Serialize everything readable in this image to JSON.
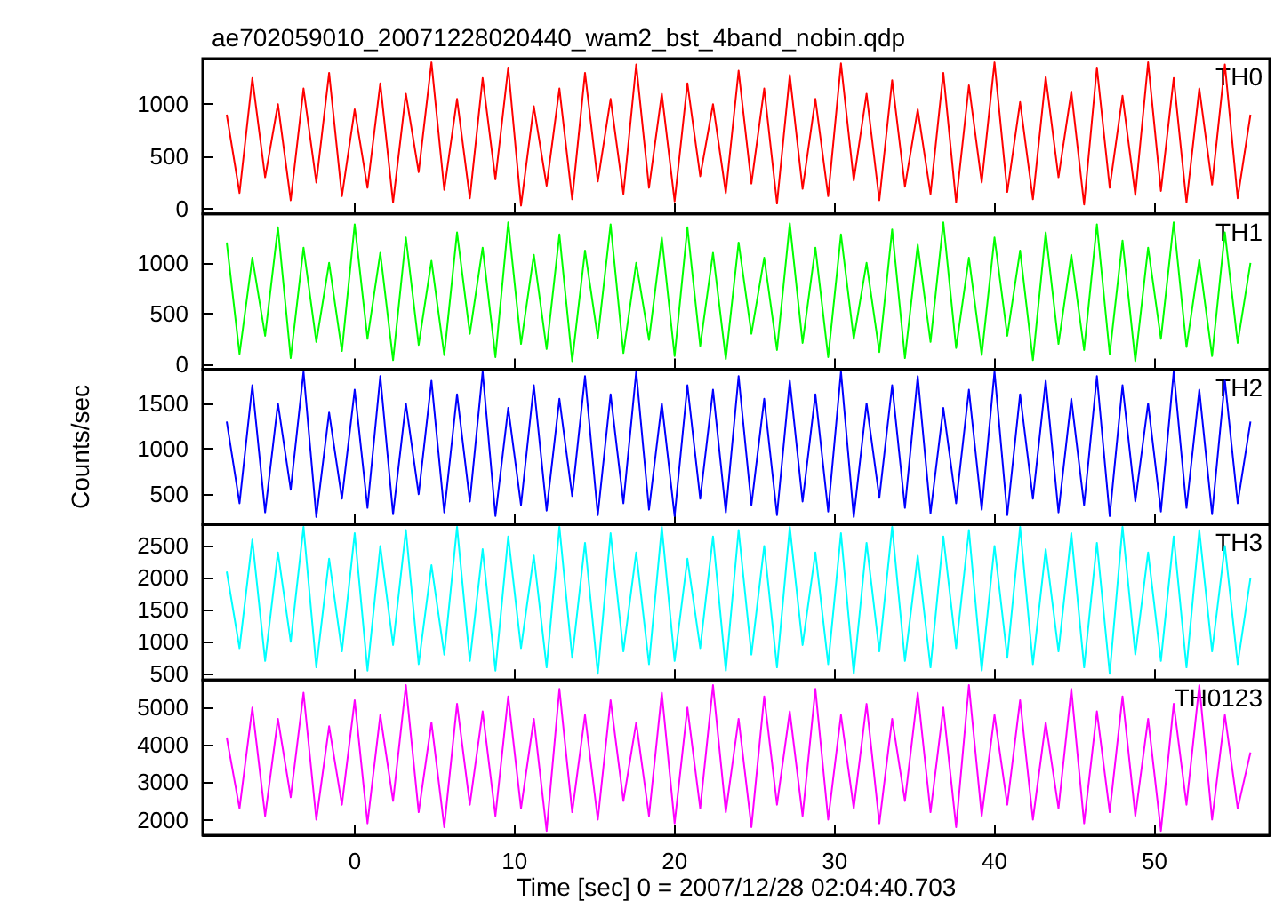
{
  "chart_data": [
    {
      "type": "line",
      "title": "ae702059010_20071228020440_wam2_bst_4band_nobin.qdp",
      "marker": "none",
      "tick_labels": "y",
      "xlim": [
        -9.5,
        57.2
      ],
      "xticks": [
        0,
        10,
        20,
        30,
        40,
        50
      ],
      "ylim": [
        -50,
        1435
      ],
      "yticks": [
        0,
        500,
        1000
      ],
      "x": [
        -8,
        -7.2,
        -6.4,
        -5.6,
        -4.8,
        -4,
        -3.2,
        -2.4,
        -1.6,
        -0.8,
        0,
        0.8,
        1.6,
        2.4,
        3.2,
        4,
        4.8,
        5.6,
        6.4,
        7.2,
        8,
        8.8,
        9.6,
        10.4,
        11.2,
        12,
        12.8,
        13.6,
        14.4,
        15.2,
        16,
        16.8,
        17.6,
        18.4,
        19.2,
        20,
        20.8,
        21.6,
        22.4,
        23.2,
        24,
        24.8,
        25.6,
        26.4,
        27.2,
        28,
        28.8,
        29.6,
        30.4,
        31.2,
        32,
        32.8,
        33.6,
        34.4,
        35.2,
        36,
        36.8,
        37.6,
        38.4,
        39.2,
        40,
        40.8,
        41.6,
        42.4,
        43.2,
        44,
        44.8,
        45.6,
        46.4,
        47.2,
        48,
        48.8,
        49.6,
        50.4,
        51.2,
        52,
        52.8,
        53.6,
        54.4,
        55.2,
        56
      ],
      "series": [
        {
          "name": "TH0",
          "color": "#ff0000",
          "values": [
            900,
            150,
            1250,
            300,
            1000,
            80,
            1150,
            250,
            1300,
            120,
            950,
            200,
            1200,
            60,
            1100,
            350,
            1400,
            180,
            1050,
            100,
            1250,
            280,
            1350,
            30,
            980,
            220,
            1150,
            90,
            1300,
            260,
            1050,
            140,
            1380,
            200,
            1100,
            70,
            1200,
            310,
            1000,
            150,
            1320,
            240,
            1150,
            50,
            1280,
            190,
            1050,
            120,
            1390,
            270,
            1100,
            80,
            1230,
            210,
            950,
            140,
            1300,
            60,
            1180,
            250,
            1400,
            160,
            1020,
            90,
            1260,
            300,
            1120,
            40,
            1350,
            200,
            1080,
            130,
            1400,
            170,
            1250,
            60,
            1150,
            230,
            1380,
            100,
            900
          ]
        }
      ]
    },
    {
      "type": "line",
      "marker": "none",
      "tick_labels": "y",
      "xlim": [
        -9.5,
        57.2
      ],
      "xticks": [
        0,
        10,
        20,
        30,
        40,
        50
      ],
      "ylim": [
        -50,
        1482
      ],
      "yticks": [
        0,
        500,
        1000
      ],
      "x": [
        -8,
        -7.2,
        -6.4,
        -5.6,
        -4.8,
        -4,
        -3.2,
        -2.4,
        -1.6,
        -0.8,
        0,
        0.8,
        1.6,
        2.4,
        3.2,
        4,
        4.8,
        5.6,
        6.4,
        7.2,
        8,
        8.8,
        9.6,
        10.4,
        11.2,
        12,
        12.8,
        13.6,
        14.4,
        15.2,
        16,
        16.8,
        17.6,
        18.4,
        19.2,
        20,
        20.8,
        21.6,
        22.4,
        23.2,
        24,
        24.8,
        25.6,
        26.4,
        27.2,
        28,
        28.8,
        29.6,
        30.4,
        31.2,
        32,
        32.8,
        33.6,
        34.4,
        35.2,
        36,
        36.8,
        37.6,
        38.4,
        39.2,
        40,
        40.8,
        41.6,
        42.4,
        43.2,
        44,
        44.8,
        45.6,
        46.4,
        47.2,
        48,
        48.8,
        49.6,
        50.4,
        51.2,
        52,
        52.8,
        53.6,
        54.4,
        55.2,
        56
      ],
      "series": [
        {
          "name": "TH1",
          "color": "#00ff00",
          "values": [
            1200,
            100,
            1050,
            280,
            1350,
            60,
            1150,
            220,
            1000,
            130,
            1380,
            250,
            1100,
            40,
            1250,
            190,
            1020,
            90,
            1300,
            300,
            1150,
            70,
            1400,
            200,
            1080,
            150,
            1280,
            30,
            1120,
            260,
            1380,
            110,
            1000,
            240,
            1250,
            80,
            1350,
            180,
            1100,
            50,
            1200,
            300,
            1050,
            140,
            1390,
            210,
            1150,
            70,
            1280,
            250,
            1000,
            120,
            1330,
            60,
            1180,
            220,
            1400,
            160,
            1050,
            90,
            1250,
            280,
            1120,
            40,
            1300,
            200,
            1080,
            140,
            1380,
            100,
            1220,
            30,
            1150,
            250,
            1400,
            170,
            1030,
            80,
            1300,
            210,
            1000
          ]
        }
      ]
    },
    {
      "type": "line",
      "ylabel": "Counts/sec",
      "marker": "none",
      "tick_labels": "y",
      "xlim": [
        -9.5,
        57.2
      ],
      "xticks": [
        0,
        10,
        20,
        30,
        40,
        50
      ],
      "ylim": [
        166,
        1875
      ],
      "yticks": [
        500,
        1000,
        1500
      ],
      "x": [
        -8,
        -7.2,
        -6.4,
        -5.6,
        -4.8,
        -4,
        -3.2,
        -2.4,
        -1.6,
        -0.8,
        0,
        0.8,
        1.6,
        2.4,
        3.2,
        4,
        4.8,
        5.6,
        6.4,
        7.2,
        8,
        8.8,
        9.6,
        10.4,
        11.2,
        12,
        12.8,
        13.6,
        14.4,
        15.2,
        16,
        16.8,
        17.6,
        18.4,
        19.2,
        20,
        20.8,
        21.6,
        22.4,
        23.2,
        24,
        24.8,
        25.6,
        26.4,
        27.2,
        28,
        28.8,
        29.6,
        30.4,
        31.2,
        32,
        32.8,
        33.6,
        34.4,
        35.2,
        36,
        36.8,
        37.6,
        38.4,
        39.2,
        40,
        40.8,
        41.6,
        42.4,
        43.2,
        44,
        44.8,
        45.6,
        46.4,
        47.2,
        48,
        48.8,
        49.6,
        50.4,
        51.2,
        52,
        52.8,
        53.6,
        54.4,
        55.2,
        56
      ],
      "series": [
        {
          "name": "TH2",
          "color": "#0000ff",
          "values": [
            1300,
            400,
            1700,
            300,
            1500,
            550,
            1850,
            250,
            1400,
            450,
            1650,
            350,
            1800,
            280,
            1500,
            500,
            1750,
            300,
            1600,
            420,
            1850,
            260,
            1450,
            380,
            1700,
            320,
            1550,
            480,
            1800,
            270,
            1600,
            400,
            1850,
            330,
            1500,
            260,
            1700,
            450,
            1650,
            300,
            1800,
            380,
            1550,
            270,
            1750,
            420,
            1600,
            310,
            1850,
            250,
            1500,
            460,
            1700,
            350,
            1800,
            290,
            1450,
            400,
            1650,
            330,
            1850,
            270,
            1600,
            450,
            1750,
            300,
            1550,
            380,
            1800,
            260,
            1700,
            420,
            1500,
            310,
            1850,
            350,
            1650,
            280,
            1750,
            400,
            1300
          ]
        }
      ]
    },
    {
      "type": "line",
      "marker": "none",
      "tick_labels": "y",
      "xlim": [
        -9.5,
        57.2
      ],
      "xticks": [
        0,
        10,
        20,
        30,
        40,
        50
      ],
      "ylim": [
        403,
        2835
      ],
      "yticks": [
        500,
        1000,
        1500,
        2000,
        2500
      ],
      "x": [
        -8,
        -7.2,
        -6.4,
        -5.6,
        -4.8,
        -4,
        -3.2,
        -2.4,
        -1.6,
        -0.8,
        0,
        0.8,
        1.6,
        2.4,
        3.2,
        4,
        4.8,
        5.6,
        6.4,
        7.2,
        8,
        8.8,
        9.6,
        10.4,
        11.2,
        12,
        12.8,
        13.6,
        14.4,
        15.2,
        16,
        16.8,
        17.6,
        18.4,
        19.2,
        20,
        20.8,
        21.6,
        22.4,
        23.2,
        24,
        24.8,
        25.6,
        26.4,
        27.2,
        28,
        28.8,
        29.6,
        30.4,
        31.2,
        32,
        32.8,
        33.6,
        34.4,
        35.2,
        36,
        36.8,
        37.6,
        38.4,
        39.2,
        40,
        40.8,
        41.6,
        42.4,
        43.2,
        44,
        44.8,
        45.6,
        46.4,
        47.2,
        48,
        48.8,
        49.6,
        50.4,
        51.2,
        52,
        52.8,
        53.6,
        54.4,
        55.2,
        56
      ],
      "series": [
        {
          "name": "TH3",
          "color": "#00ffff",
          "values": [
            2100,
            900,
            2600,
            700,
            2400,
            1000,
            2800,
            600,
            2300,
            850,
            2700,
            550,
            2500,
            950,
            2750,
            650,
            2200,
            800,
            2800,
            700,
            2450,
            550,
            2650,
            900,
            2350,
            600,
            2800,
            750,
            2550,
            500,
            2700,
            850,
            2400,
            650,
            2800,
            700,
            2300,
            900,
            2650,
            550,
            2750,
            800,
            2500,
            600,
            2800,
            950,
            2400,
            650,
            2700,
            500,
            2550,
            850,
            2800,
            700,
            2350,
            600,
            2650,
            900,
            2750,
            550,
            2500,
            750,
            2800,
            650,
            2450,
            850,
            2700,
            600,
            2550,
            500,
            2800,
            800,
            2400,
            700,
            2650,
            600,
            2750,
            850,
            2500,
            650,
            2000
          ]
        }
      ]
    },
    {
      "type": "line",
      "xlabel": "Time [sec] 0 = 2007/12/28 02:04:40.703",
      "marker": "none",
      "xlim": [
        -9.5,
        57.2
      ],
      "xticks": [
        0,
        10,
        20,
        30,
        40,
        50
      ],
      "ylim": [
        1584,
        5740
      ],
      "yticks": [
        2000,
        3000,
        4000,
        5000
      ],
      "x": [
        -8,
        -7.2,
        -6.4,
        -5.6,
        -4.8,
        -4,
        -3.2,
        -2.4,
        -1.6,
        -0.8,
        0,
        0.8,
        1.6,
        2.4,
        3.2,
        4,
        4.8,
        5.6,
        6.4,
        7.2,
        8,
        8.8,
        9.6,
        10.4,
        11.2,
        12,
        12.8,
        13.6,
        14.4,
        15.2,
        16,
        16.8,
        17.6,
        18.4,
        19.2,
        20,
        20.8,
        21.6,
        22.4,
        23.2,
        24,
        24.8,
        25.6,
        26.4,
        27.2,
        28,
        28.8,
        29.6,
        30.4,
        31.2,
        32,
        32.8,
        33.6,
        34.4,
        35.2,
        36,
        36.8,
        37.6,
        38.4,
        39.2,
        40,
        40.8,
        41.6,
        42.4,
        43.2,
        44,
        44.8,
        45.6,
        46.4,
        47.2,
        48,
        48.8,
        49.6,
        50.4,
        51.2,
        52,
        52.8,
        53.6,
        54.4,
        55.2,
        56
      ],
      "series": [
        {
          "name": "TH0123",
          "color": "#ff00ff",
          "values": [
            4200,
            2300,
            5000,
            2100,
            4700,
            2600,
            5400,
            2000,
            4500,
            2400,
            5200,
            1900,
            4800,
            2500,
            5600,
            2200,
            4600,
            1800,
            5100,
            2400,
            4900,
            2100,
            5300,
            2300,
            4700,
            1700,
            5500,
            2200,
            4800,
            2000,
            5200,
            2500,
            4600,
            2100,
            5400,
            1900,
            5000,
            2300,
            5600,
            2200,
            4700,
            1800,
            5300,
            2400,
            4900,
            2100,
            5500,
            2000,
            4800,
            2300,
            5100,
            1900,
            4700,
            2500,
            5400,
            2200,
            5000,
            1800,
            5600,
            2100,
            4800,
            2400,
            5200,
            2000,
            4600,
            2300,
            5500,
            1900,
            4900,
            2200,
            5300,
            2100,
            4700,
            1700,
            5100,
            2400,
            5600,
            2000,
            4800,
            2300,
            3800
          ]
        }
      ]
    }
  ]
}
